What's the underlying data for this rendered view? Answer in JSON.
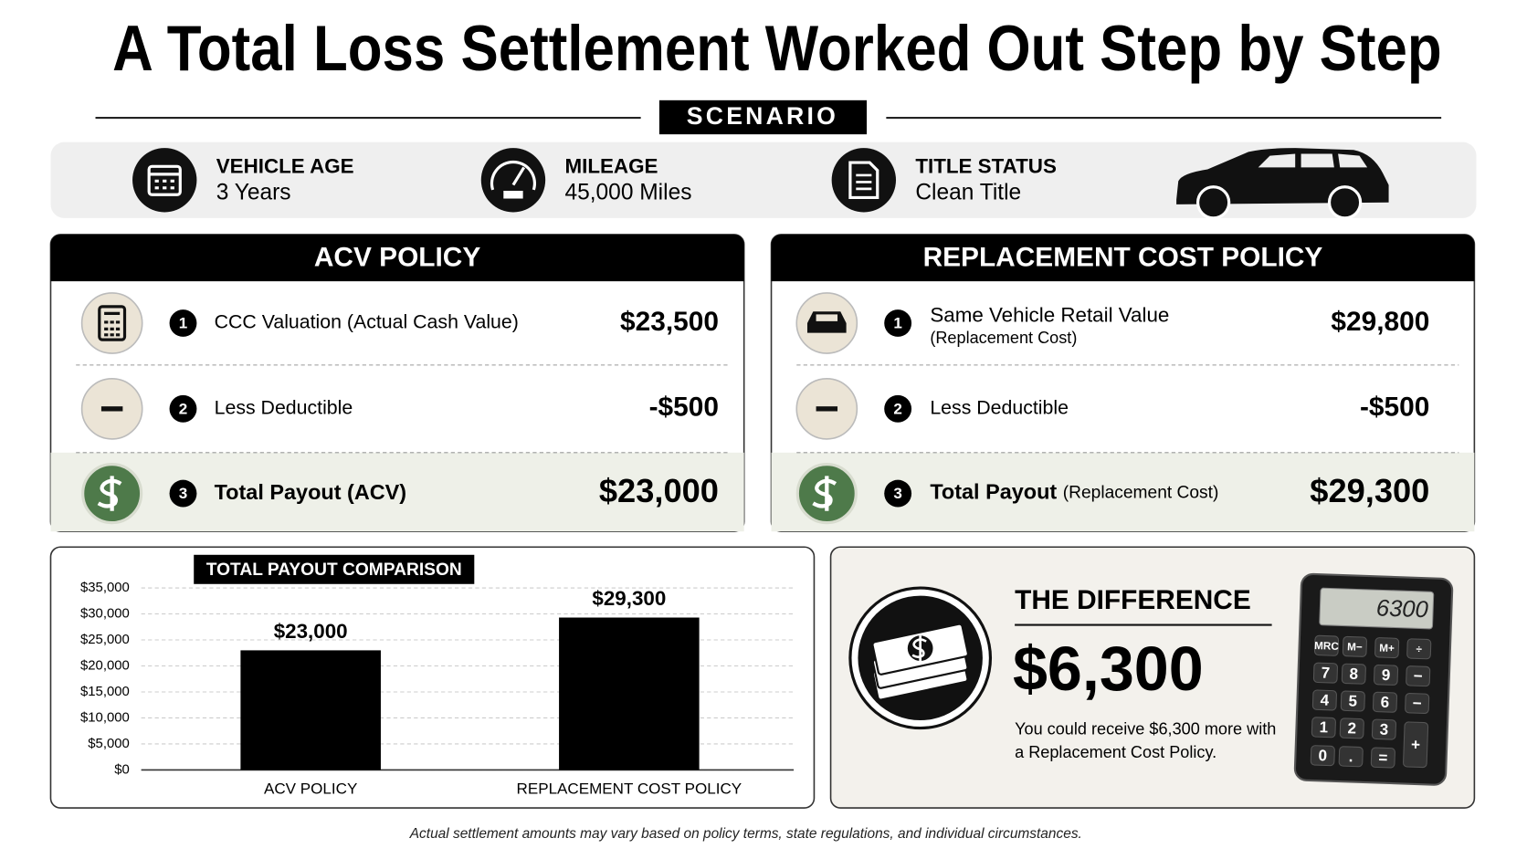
{
  "header": {
    "title": "A Total Loss Settlement Worked Out Step by Step",
    "scenario_label": "SCENARIO"
  },
  "scenario": [
    {
      "label": "VEHICLE AGE",
      "value": "3 Years"
    },
    {
      "label": "MILEAGE",
      "value": "45,000 Miles"
    },
    {
      "label": "TITLE STATUS",
      "value": "Clean Title"
    }
  ],
  "policies": [
    {
      "title": "ACV POLICY",
      "steps": [
        {
          "number": "1",
          "label": "CCC Valuation (Actual Cash Value)",
          "amount": "$23,500"
        },
        {
          "number": "2",
          "label": "Less Deductible",
          "amount": "-$500"
        },
        {
          "number": "3",
          "label": "Total Payout (ACV)",
          "amount": "$23,000"
        }
      ]
    },
    {
      "title": "REPLACEMENT COST POLICY",
      "steps": [
        {
          "number": "1",
          "label": "Same Vehicle Retail Value",
          "sublabel": "(Replacement Cost)",
          "amount": "$29,800"
        },
        {
          "number": "2",
          "label": "Less Deductible",
          "amount": "-$500"
        },
        {
          "number": "3",
          "label": "Total Payout",
          "label_suffix": "(Replacement Cost)",
          "amount": "$29,300"
        }
      ]
    }
  ],
  "chart_data": {
    "type": "bar",
    "title": "TOTAL PAYOUT COMPARISON",
    "categories": [
      "ACV POLICY",
      "REPLACEMENT COST POLICY"
    ],
    "values": [
      23000,
      29300
    ],
    "value_labels": [
      "$23,000",
      "$29,300"
    ],
    "color": "#000000",
    "ylim": [
      0,
      35000
    ],
    "yticks": [
      {
        "value": 0,
        "label": "$0"
      },
      {
        "value": 5000,
        "label": "$5,000"
      },
      {
        "value": 10000,
        "label": "$10,000"
      },
      {
        "value": 15000,
        "label": "$15,000"
      },
      {
        "value": 20000,
        "label": "$20,000"
      },
      {
        "value": 25000,
        "label": "$25,000"
      },
      {
        "value": 30000,
        "label": "$30,000"
      },
      {
        "value": 35000,
        "label": "$35,000"
      }
    ],
    "grid": true
  },
  "difference": {
    "title": "THE DIFFERENCE",
    "amount": "$6,300",
    "note_lines": [
      "You could receive $6,300 more with",
      "a Replacement Cost Policy."
    ],
    "calculator_display": "6300",
    "calculator_keys": [
      "MRC",
      "M−",
      "M+",
      "÷",
      "7",
      "8",
      "9",
      "−",
      "4",
      "5",
      "6",
      "−",
      "1",
      "2",
      "3",
      "+",
      "0",
      ".",
      "="
    ]
  },
  "footnote": "Actual settlement amounts may vary based on policy terms, state regulations, and individual circumstances."
}
